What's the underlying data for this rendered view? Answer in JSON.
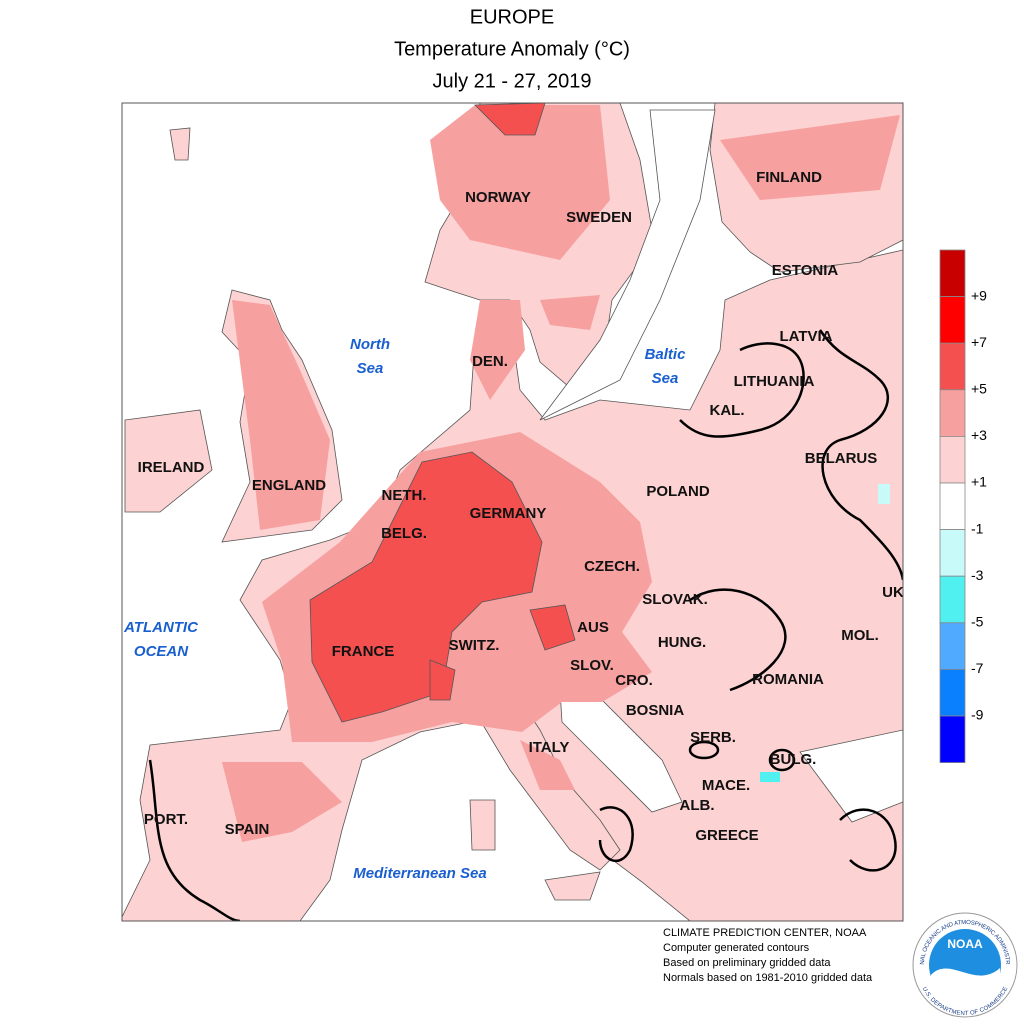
{
  "header": {
    "title": [
      "EUROPE",
      "Temperature Anomaly (°C)",
      "July 21 - 27, 2019"
    ]
  },
  "map": {
    "country_labels": [
      "NORWAY",
      "SWEDEN",
      "FINLAND",
      "ESTONIA",
      "LATVIA",
      "LITHUANIA",
      "KAL.",
      "BELARUS",
      "POLAND",
      "DEN.",
      "IRELAND",
      "ENGLAND",
      "NETH.",
      "BELG.",
      "GERMANY",
      "CZECH.",
      "SLOVAK.",
      "UK",
      "MOL.",
      "HUNG.",
      "AUS",
      "SWITZ.",
      "SLOV.",
      "CRO.",
      "ROMANIA",
      "BOSNIA",
      "SERB.",
      "BULG.",
      "MACE.",
      "ALB.",
      "GREECE",
      "ITALY",
      "FRANCE",
      "SPAIN",
      "PORT."
    ],
    "water_labels": [
      [
        "North",
        "Sea"
      ],
      [
        "Baltic",
        "Sea"
      ],
      [
        "ATLANTIC",
        "OCEAN"
      ],
      [
        "Mediterranean Sea"
      ]
    ]
  },
  "legend": {
    "colors": [
      "#c80000",
      "#ff0000",
      "#f55050",
      "#f7a0a0",
      "#fcd2d2",
      "#ffffff",
      "#c8fafa",
      "#50f0f0",
      "#50aaff",
      "#0a80ff",
      "#0000ff"
    ],
    "labels": [
      "+9",
      "+7",
      "+5",
      "+3",
      "+1",
      "-1",
      "-3",
      "-5",
      "-7",
      "-9"
    ]
  },
  "footer": {
    "lines": [
      "CLIMATE PREDICTION CENTER, NOAA",
      "Computer generated contours",
      "Based on preliminary gridded data",
      "Normals based on 1981-2010 gridded data"
    ]
  },
  "logo": {
    "text": "NOAA",
    "ring_top": "NATIONAL OCEANIC AND ATMOSPHERIC ADMINISTRATION",
    "ring_bottom": "U.S. DEPARTMENT OF COMMERCE"
  }
}
